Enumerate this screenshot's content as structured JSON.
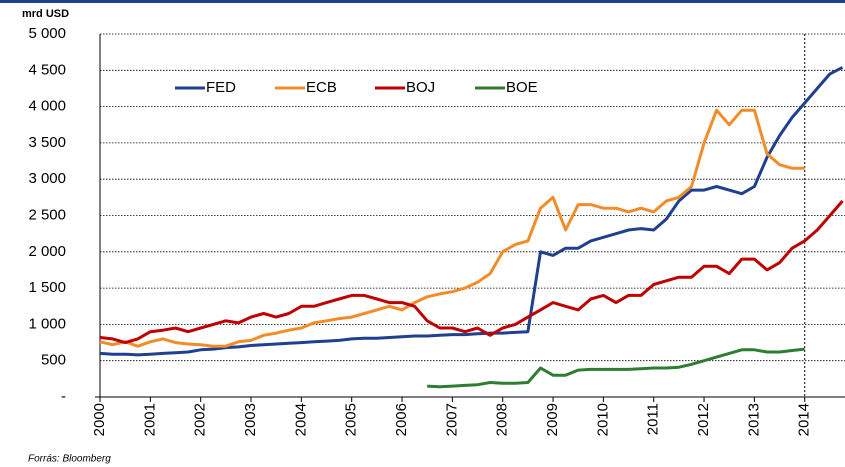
{
  "chart_data": {
    "type": "line",
    "y_label": "mrd USD",
    "source": "Forrás: Bloomberg",
    "x": [
      2000,
      2000.25,
      2000.5,
      2000.75,
      2001,
      2001.25,
      2001.5,
      2001.75,
      2002,
      2002.25,
      2002.5,
      2002.75,
      2003,
      2003.25,
      2003.5,
      2003.75,
      2004,
      2004.25,
      2004.5,
      2004.75,
      2005,
      2005.25,
      2005.5,
      2005.75,
      2006,
      2006.25,
      2006.5,
      2006.75,
      2007,
      2007.25,
      2007.5,
      2007.75,
      2008,
      2008.25,
      2008.5,
      2008.75,
      2009,
      2009.25,
      2009.5,
      2009.75,
      2010,
      2010.25,
      2010.5,
      2010.75,
      2011,
      2011.25,
      2011.5,
      2011.75,
      2012,
      2012.25,
      2012.5,
      2012.75,
      2013,
      2013.25,
      2013.5,
      2013.75,
      2014,
      2014.25,
      2014.5,
      2014.75
    ],
    "series": [
      {
        "name": "FED",
        "color": "#1f3f8f",
        "values": [
          600,
          590,
          590,
          580,
          590,
          600,
          610,
          620,
          650,
          660,
          680,
          690,
          710,
          720,
          730,
          740,
          750,
          760,
          770,
          780,
          800,
          810,
          810,
          820,
          830,
          840,
          840,
          850,
          860,
          860,
          870,
          880,
          880,
          890,
          900,
          2000,
          1950,
          2050,
          2050,
          2150,
          2200,
          2250,
          2300,
          2320,
          2300,
          2450,
          2700,
          2850,
          2850,
          2900,
          2850,
          2800,
          2900,
          3300,
          3600,
          3850,
          4050,
          4250,
          4450,
          4540
        ]
      },
      {
        "name": "ECB",
        "color": "#f28c28",
        "values": [
          760,
          720,
          760,
          700,
          760,
          800,
          750,
          730,
          720,
          700,
          700,
          760,
          780,
          850,
          880,
          920,
          950,
          1020,
          1050,
          1080,
          1100,
          1150,
          1200,
          1250,
          1200,
          1300,
          1380,
          1420,
          1450,
          1500,
          1580,
          1700,
          2000,
          2100,
          2150,
          2600,
          2750,
          2300,
          2650,
          2650,
          2600,
          2600,
          2550,
          2600,
          2550,
          2700,
          2750,
          2900,
          3500,
          3950,
          3750,
          3950,
          3950,
          3350,
          3200,
          3150,
          3150,
          null,
          null,
          null
        ]
      },
      {
        "name": "BOJ",
        "color": "#c00000",
        "values": [
          820,
          800,
          750,
          800,
          900,
          920,
          950,
          900,
          950,
          1000,
          1050,
          1020,
          1100,
          1150,
          1100,
          1150,
          1250,
          1250,
          1300,
          1350,
          1400,
          1400,
          1350,
          1300,
          1300,
          1250,
          1050,
          950,
          950,
          900,
          950,
          850,
          950,
          1000,
          1100,
          1200,
          1300,
          1250,
          1200,
          1350,
          1400,
          1300,
          1400,
          1400,
          1550,
          1600,
          1650,
          1650,
          1800,
          1800,
          1700,
          1900,
          1900,
          1750,
          1850,
          2050,
          2150,
          2300,
          2500,
          2700
        ]
      },
      {
        "name": "BOE",
        "color": "#2e7d32",
        "values": [
          null,
          null,
          null,
          null,
          null,
          null,
          null,
          null,
          null,
          null,
          null,
          null,
          null,
          null,
          null,
          null,
          null,
          null,
          null,
          null,
          null,
          null,
          null,
          null,
          null,
          null,
          150,
          140,
          150,
          160,
          170,
          200,
          190,
          190,
          200,
          400,
          300,
          300,
          370,
          380,
          380,
          380,
          380,
          390,
          400,
          400,
          410,
          450,
          500,
          550,
          600,
          650,
          650,
          620,
          620,
          640,
          660,
          null,
          null,
          null
        ]
      }
    ],
    "xlim": [
      2000,
      2014.8
    ],
    "xticks": [
      2000,
      2001,
      2002,
      2003,
      2004,
      2005,
      2006,
      2007,
      2008,
      2009,
      2010,
      2011,
      2012,
      2013,
      2014
    ],
    "ylim": [
      0,
      5000
    ],
    "yticks": [
      {
        "value": 0,
        "label": "-"
      },
      500,
      {
        "value": 1000,
        "label": "1 000"
      },
      {
        "value": 1500,
        "label": "1 500"
      },
      {
        "value": 2000,
        "label": "2 000"
      },
      {
        "value": 2500,
        "label": "2 500"
      },
      {
        "value": 3000,
        "label": "3 000"
      },
      {
        "value": 3500,
        "label": "3 500"
      },
      {
        "value": 4000,
        "label": "4 000"
      },
      {
        "value": 4500,
        "label": "4 500"
      },
      {
        "value": 5000,
        "label": "5 000"
      }
    ],
    "grid": true,
    "reference_line_x": 2014,
    "legend": "top-left"
  }
}
